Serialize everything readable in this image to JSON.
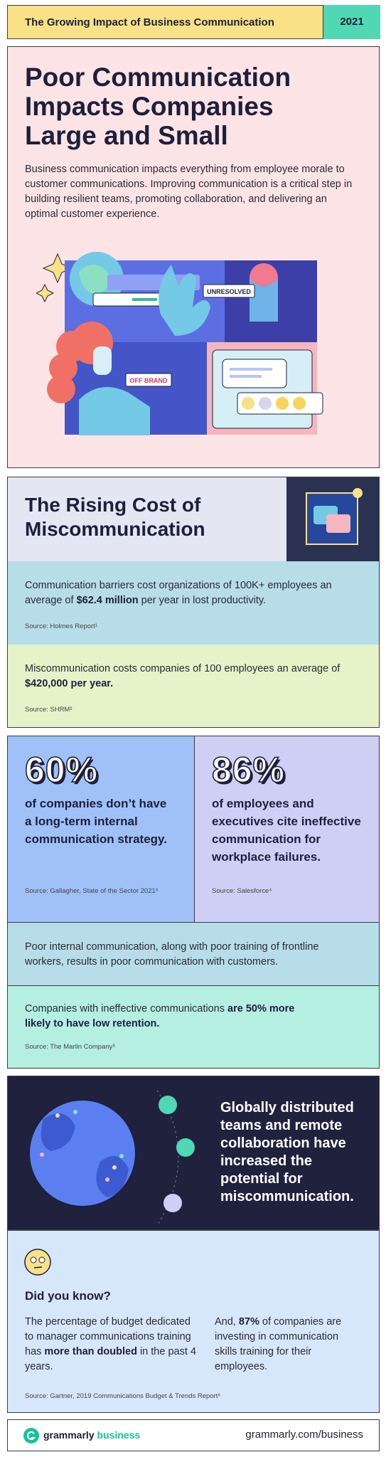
{
  "header": {
    "title": "The Growing Impact of Business Communication",
    "year": "2021"
  },
  "hero": {
    "title_lines": [
      "Poor Communication",
      "Impacts Companies",
      "Large and Small"
    ],
    "paragraph": "Business communication impacts everything from employee morale to customer communications. Improving communication is a critical step in building resilient teams, promoting collaboration, and delivering an optimal customer experience.",
    "badges": [
      "UNRESOLVED",
      "OFF BRAND"
    ]
  },
  "cost": {
    "title_lines": [
      "The Rising Cost of",
      "Miscommunication"
    ],
    "facts": [
      {
        "text": [
          "Communication barriers cost organizations of 100K+ employees an average of ",
          {
            "bold": "$62.4 million"
          },
          " per year in lost productivity."
        ],
        "source": "Source: Holmes Report¹"
      },
      {
        "text": [
          "Miscommunication costs companies of 100 employees an average of ",
          {
            "bold": "$420,000 per year."
          }
        ],
        "source": "Source: SHRM²"
      }
    ]
  },
  "stats": [
    {
      "figure": "60%",
      "text": "of companies don’t have a long-term internal communication strategy.",
      "source": "Source: Gallagher, State of the Sector 2021³"
    },
    {
      "figure": "86%",
      "text": "of employees and executives cite ineffective communication for workplace failures.",
      "source": "Source: Salesforce⁴"
    }
  ],
  "customer": {
    "note": "Poor internal communication, along with poor training of frontline workers, results in poor communication with customers.",
    "retention": {
      "text": [
        "Companies with ineffective communications ",
        {
          "bold": "are 50% more likely to have low retention."
        }
      ],
      "source": "Source: The Marlin Company⁵"
    }
  },
  "global": {
    "text": "Globally distributed teams and remote collaboration have increased the potential for miscommunication."
  },
  "did_you_know": {
    "title": "Did you know?",
    "columns": [
      [
        "The percentage of budget dedicated to manager communications training has ",
        {
          "bold": "more than doubled"
        },
        " in the past 4 years."
      ],
      [
        "And, ",
        {
          "bold": "87%"
        },
        " of companies are investing in communication skills training for their employees."
      ]
    ],
    "source": "Source: Gartner, 2019 Communications Budget & Trends Report⁶"
  },
  "footer": {
    "brand": "grammarly",
    "brand_suffix": "business",
    "url": "grammarly.com/business"
  }
}
